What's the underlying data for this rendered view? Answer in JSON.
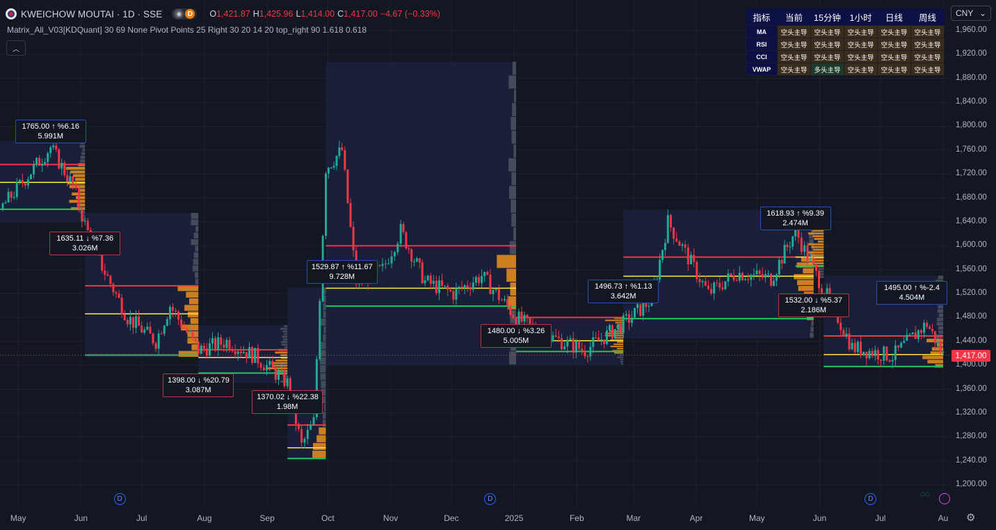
{
  "header": {
    "symbol_title": "KWEICHOW MOUTAI · 1D · SSE",
    "pill_letter": "D",
    "ohlc": [
      {
        "key": "O",
        "value": "1,421.87"
      },
      {
        "key": "H",
        "value": "1,425.96"
      },
      {
        "key": "L",
        "value": "1,414.00"
      },
      {
        "key": "C",
        "value": "1,417.00"
      }
    ],
    "change": "−4.67 (−0.33%)"
  },
  "indicator_line": "Matrix_All_V03[KDQuant] 30 69 None Pivot Points 25 Right 30 20 14 20 top_right 90 1.618 0.618",
  "currency": "CNY",
  "info_table": {
    "headers": [
      "指标",
      "当前",
      "15分钟",
      "1小时",
      "日线",
      "周线"
    ],
    "rows": [
      {
        "label": "MA",
        "cells": [
          "空头主导",
          "空头主导",
          "空头主导",
          "空头主导",
          "空头主导"
        ],
        "types": [
          "s",
          "s",
          "s",
          "s",
          "s"
        ]
      },
      {
        "label": "RSI",
        "cells": [
          "空头主导",
          "空头主导",
          "空头主导",
          "空头主导",
          "空头主导"
        ],
        "types": [
          "s",
          "s",
          "s",
          "s",
          "s"
        ]
      },
      {
        "label": "CCI",
        "cells": [
          "空头主导",
          "空头主导",
          "空头主导",
          "空头主导",
          "空头主导"
        ],
        "types": [
          "s",
          "s",
          "s",
          "s",
          "s"
        ]
      },
      {
        "label": "VWAP",
        "cells": [
          "空头主导",
          "多头主导",
          "空头主导",
          "空头主导",
          "空头主导"
        ],
        "types": [
          "s",
          "l",
          "s",
          "s",
          "s"
        ]
      }
    ]
  },
  "price_axis": [
    "1,960.00",
    "1,920.00",
    "1,880.00",
    "1,840.00",
    "1,800.00",
    "1,760.00",
    "1,720.00",
    "1,680.00",
    "1,640.00",
    "1,600.00",
    "1,560.00",
    "1,520.00",
    "1,480.00",
    "1,440.00",
    "1,400.00",
    "1,360.00",
    "1,320.00",
    "1,280.00",
    "1,240.00",
    "1,200.00"
  ],
  "last_price": "1,417.00",
  "time_axis": [
    "May",
    "Jun",
    "Jul",
    "Aug",
    "Sep",
    "Oct",
    "Nov",
    "Dec",
    "2025",
    "Feb",
    "Mar",
    "Apr",
    "May",
    "Jun",
    "Jul",
    "Au"
  ],
  "dividend_marker": "D",
  "pivot_labels": [
    {
      "l1": "1765.00 ↑ %6.16",
      "l2": "5.991M",
      "dir": "up"
    },
    {
      "l1": "1635.11 ↓ %7.36",
      "l2": "3.026M",
      "dir": "down"
    },
    {
      "l1": "1398.00 ↓ %20.79",
      "l2": "3.087M",
      "dir": "down"
    },
    {
      "l1": "1370.02 ↓ %22.38",
      "l2": "1.98M",
      "dir": "down"
    },
    {
      "l1": "1529.87 ↑ %11.67",
      "l2": "9.728M",
      "dir": "up"
    },
    {
      "l1": "1480.00 ↓ %3.26",
      "l2": "5.005M",
      "dir": "down"
    },
    {
      "l1": "1496.73 ↑ %1.13",
      "l2": "3.642M",
      "dir": "up"
    },
    {
      "l1": "1618.93 ↑ %9.39",
      "l2": "2.474M",
      "dir": "up"
    },
    {
      "l1": "1532.00 ↓ %5.37",
      "l2": "2.186M",
      "dir": "down"
    },
    {
      "l1": "1495.00 ↑ %-2.4",
      "l2": "4.504M",
      "dir": "up"
    }
  ],
  "chart_data": {
    "type": "candlestick",
    "ylim": [
      1180,
      1975
    ],
    "last_close": 1417.0,
    "pivots": [
      {
        "date": "2024-05-17",
        "price": 1765.0,
        "kind": "high"
      },
      {
        "date": "2024-06-03",
        "price": 1635.11,
        "kind": "low"
      },
      {
        "date": "2024-07-29",
        "price": 1398.0,
        "kind": "low"
      },
      {
        "date": "2024-09-11",
        "price": 1370.02,
        "kind": "low"
      },
      {
        "date": "2024-10-08",
        "price": 1529.87,
        "kind": "high"
      },
      {
        "date": "2025-01-02",
        "price": 1480.0,
        "kind": "low"
      },
      {
        "date": "2025-02-24",
        "price": 1496.73,
        "kind": "high"
      },
      {
        "date": "2025-05-20",
        "price": 1618.93,
        "kind": "high"
      },
      {
        "date": "2025-05-29",
        "price": 1532.0,
        "kind": "low"
      },
      {
        "date": "2025-07-24",
        "price": 1495.0,
        "kind": "high"
      }
    ],
    "ohlc_path": [
      {
        "date": "2024-04-22",
        "close": 1660
      },
      {
        "date": "2024-05-17",
        "close": 1765
      },
      {
        "date": "2024-05-28",
        "close": 1700
      },
      {
        "date": "2024-06-03",
        "close": 1635
      },
      {
        "date": "2024-06-10",
        "close": 1575
      },
      {
        "date": "2024-06-24",
        "close": 1480
      },
      {
        "date": "2024-07-08",
        "close": 1440
      },
      {
        "date": "2024-07-15",
        "close": 1500
      },
      {
        "date": "2024-07-29",
        "close": 1425
      },
      {
        "date": "2024-08-12",
        "close": 1440
      },
      {
        "date": "2024-08-26",
        "close": 1415
      },
      {
        "date": "2024-09-11",
        "close": 1370
      },
      {
        "date": "2024-09-18",
        "close": 1265
      },
      {
        "date": "2024-09-24",
        "close": 1305
      },
      {
        "date": "2024-09-30",
        "close": 1730
      },
      {
        "date": "2024-10-08",
        "close": 1760
      },
      {
        "date": "2024-10-15",
        "close": 1540
      },
      {
        "date": "2024-10-28",
        "close": 1560
      },
      {
        "date": "2024-11-06",
        "close": 1625
      },
      {
        "date": "2024-11-18",
        "close": 1540
      },
      {
        "date": "2024-12-02",
        "close": 1520
      },
      {
        "date": "2024-12-16",
        "close": 1550
      },
      {
        "date": "2025-01-02",
        "close": 1480
      },
      {
        "date": "2025-01-13",
        "close": 1455
      },
      {
        "date": "2025-02-05",
        "close": 1425
      },
      {
        "date": "2025-02-24",
        "close": 1470
      },
      {
        "date": "2025-03-10",
        "close": 1510
      },
      {
        "date": "2025-03-18",
        "close": 1640
      },
      {
        "date": "2025-04-07",
        "close": 1520
      },
      {
        "date": "2025-04-21",
        "close": 1555
      },
      {
        "date": "2025-05-08",
        "close": 1545
      },
      {
        "date": "2025-05-20",
        "close": 1625
      },
      {
        "date": "2025-05-29",
        "close": 1560
      },
      {
        "date": "2025-06-10",
        "close": 1480
      },
      {
        "date": "2025-06-17",
        "close": 1430
      },
      {
        "date": "2025-07-07",
        "close": 1415
      },
      {
        "date": "2025-07-24",
        "close": 1470
      },
      {
        "date": "2025-08-01",
        "close": 1417
      }
    ],
    "ranges": [
      {
        "from": "2024-04-22",
        "to": "2024-06-03",
        "top": 1775,
        "bottom": 1640,
        "resistance": 1736,
        "mid": 1706,
        "support": 1661
      },
      {
        "from": "2024-06-03",
        "to": "2024-07-29",
        "top": 1655,
        "bottom": 1413,
        "resistance": 1533,
        "mid": 1486,
        "support": 1417
      },
      {
        "from": "2024-07-29",
        "to": "2024-09-11",
        "top": 1467,
        "bottom": 1370,
        "resistance": 1426,
        "mid": 1413,
        "support": 1387
      },
      {
        "from": "2024-09-11",
        "to": "2024-09-30",
        "top": 1530,
        "bottom": 1244,
        "resistance": 1300,
        "mid": 1262,
        "support": 1244
      },
      {
        "from": "2024-09-30",
        "to": "2025-01-02",
        "top": 1908,
        "bottom": 1400,
        "resistance": 1600,
        "mid": 1529,
        "support": 1499
      },
      {
        "from": "2025-01-02",
        "to": "2025-02-24",
        "top": 1480,
        "bottom": 1400,
        "resistance": 1480,
        "mid": 1441,
        "support": 1423
      },
      {
        "from": "2025-02-24",
        "to": "2025-05-29",
        "top": 1660,
        "bottom": 1445,
        "resistance": 1581,
        "mid": 1549,
        "support": 1478
      },
      {
        "from": "2025-05-20",
        "to": "2025-06-03",
        "top": 1645,
        "bottom": 1545,
        "resistance": 1631,
        "mid": 1581,
        "support": 1566
      },
      {
        "from": "2025-06-03",
        "to": "2025-08-01",
        "top": 1550,
        "bottom": 1395,
        "resistance": 1449,
        "mid": 1418,
        "support": 1398
      }
    ]
  }
}
